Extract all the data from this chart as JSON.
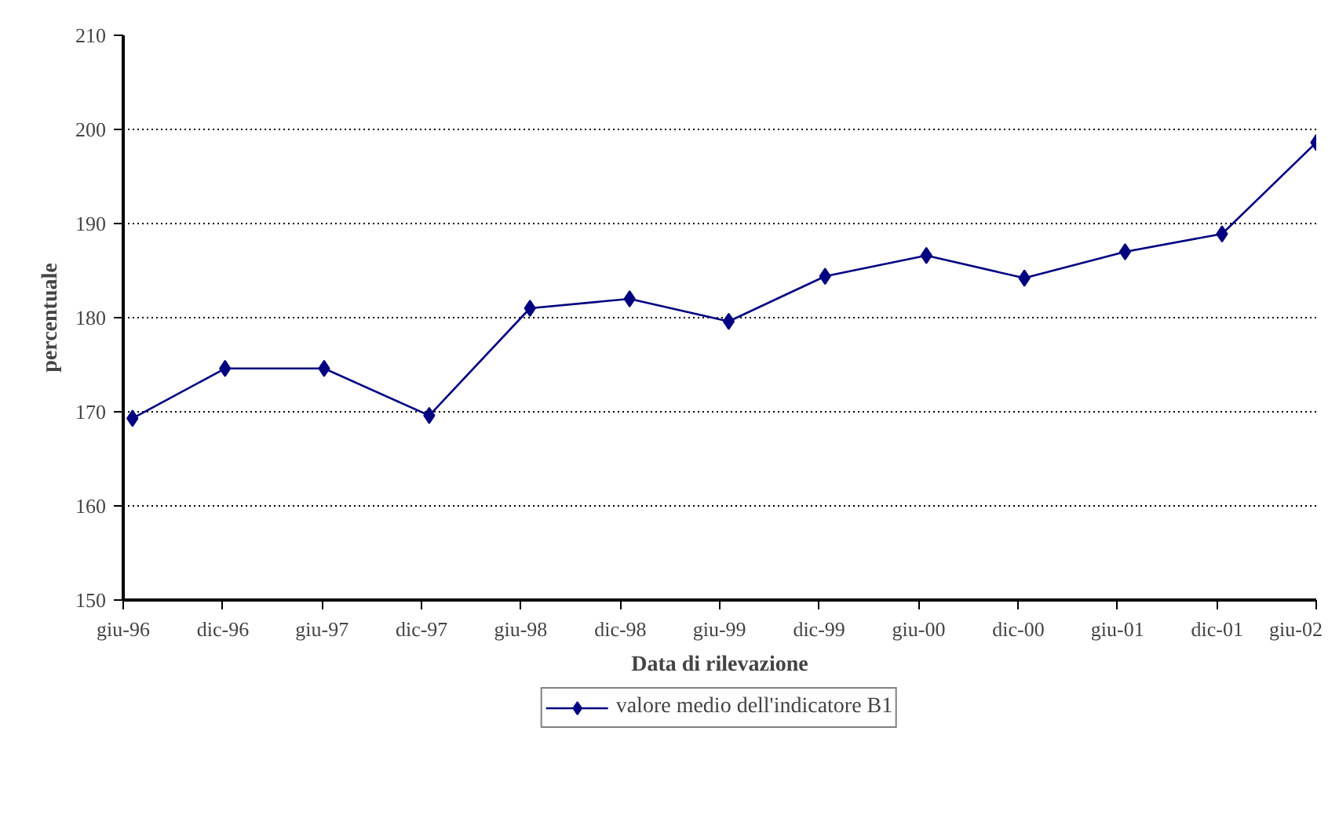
{
  "chart_data": {
    "type": "line",
    "xlabel": "Data di rilevazione",
    "ylabel": "percentuale",
    "x": [
      "1996-06-18",
      "1996-12-05",
      "1997-06-05",
      "1997-12-15",
      "1998-06-18",
      "1998-12-18",
      "1999-06-18",
      "1999-12-12",
      "2000-06-15",
      "2000-12-12",
      "2001-06-15",
      "2001-12-10",
      "2002-06-01"
    ],
    "series": [
      {
        "name": "valore medio dell'indicatore B1",
        "color": "#000080",
        "values": [
          169.3,
          174.6,
          174.6,
          169.6,
          181.0,
          182.0,
          179.6,
          184.4,
          186.6,
          184.2,
          187.0,
          188.9,
          198.6
        ]
      }
    ],
    "xlim": [
      "1996-06-01",
      "2002-06-01"
    ],
    "xticks": [
      {
        "value": "1996-06-01",
        "label": "giu-96"
      },
      {
        "value": "1996-12-01",
        "label": "dic-96"
      },
      {
        "value": "1997-06-01",
        "label": "giu-97"
      },
      {
        "value": "1997-12-01",
        "label": "dic-97"
      },
      {
        "value": "1998-06-01",
        "label": "giu-98"
      },
      {
        "value": "1998-12-01",
        "label": "dic-98"
      },
      {
        "value": "1999-06-01",
        "label": "giu-99"
      },
      {
        "value": "1999-12-01",
        "label": "dic-99"
      },
      {
        "value": "2000-06-01",
        "label": "giu-00"
      },
      {
        "value": "2000-12-01",
        "label": "dic-00"
      },
      {
        "value": "2001-06-01",
        "label": "giu-01"
      },
      {
        "value": "2001-12-01",
        "label": "dic-01"
      },
      {
        "value": "2002-06-01",
        "label": "giu-02"
      }
    ],
    "ylim": [
      150,
      210
    ],
    "yticks": [
      150,
      160,
      170,
      180,
      190,
      200,
      210
    ],
    "grid": "y",
    "legend": "bottom",
    "marker": "diamond",
    "line_style": "solid"
  }
}
